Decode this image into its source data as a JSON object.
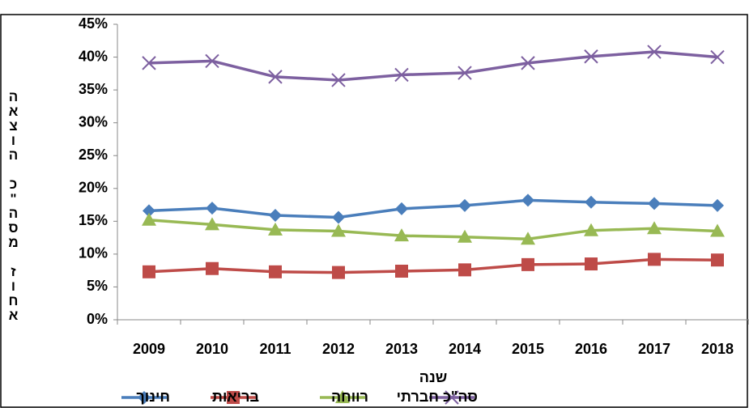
{
  "chart_data": {
    "type": "line",
    "y_label": "אחוז מסה\"כ הוצאה",
    "x_label": "שנה",
    "categories": [
      "2009",
      "2010",
      "2011",
      "2012",
      "2013",
      "2014",
      "2015",
      "2016",
      "2017",
      "2018"
    ],
    "series": [
      {
        "name": "חינוך",
        "color": "#4a7ebb",
        "marker": "diamond",
        "values": [
          16.6,
          17.0,
          15.9,
          15.6,
          16.9,
          17.4,
          18.2,
          17.9,
          17.7,
          17.4
        ]
      },
      {
        "name": "בריאות",
        "color": "#be4b48",
        "marker": "square",
        "values": [
          7.3,
          7.8,
          7.3,
          7.2,
          7.4,
          7.6,
          8.4,
          8.5,
          9.2,
          9.1
        ]
      },
      {
        "name": "רווחה",
        "color": "#98b954",
        "marker": "triangle",
        "values": [
          15.2,
          14.5,
          13.7,
          13.5,
          12.8,
          12.6,
          12.3,
          13.6,
          13.9,
          13.5
        ]
      },
      {
        "name": "סה\"כ חברתי",
        "color": "#7d60a0",
        "marker": "x",
        "values": [
          39.1,
          39.4,
          37.0,
          36.5,
          37.3,
          37.6,
          39.1,
          40.1,
          40.8,
          40.0
        ]
      }
    ],
    "ylim": [
      0,
      45
    ],
    "yticks": [
      {
        "value": 0,
        "label": "0%"
      },
      {
        "value": 5,
        "label": "5%"
      },
      {
        "value": 10,
        "label": "10%"
      },
      {
        "value": 15,
        "label": "15%"
      },
      {
        "value": 20,
        "label": "20%"
      },
      {
        "value": 25,
        "label": "25%"
      },
      {
        "value": 30,
        "label": "30%"
      },
      {
        "value": 35,
        "label": "35%"
      },
      {
        "value": 40,
        "label": "40%"
      },
      {
        "value": 45,
        "label": "45%"
      }
    ],
    "grid": false
  }
}
